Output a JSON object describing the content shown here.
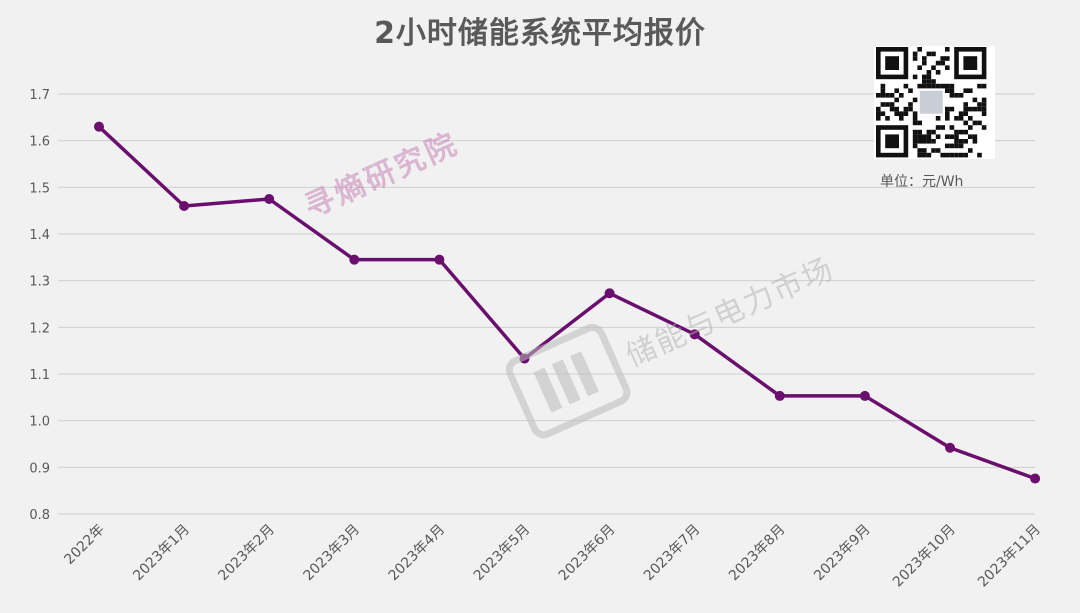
{
  "title": "2小时储能系统平均报价",
  "unit_label": "单位：元/Wh",
  "watermark_text": "寻熵研究院",
  "watermark_logo_text": "储能与电力市场",
  "chart_data": {
    "type": "line",
    "title": "2小时储能系统平均报价",
    "categories": [
      "2022年",
      "2023年1月",
      "2023年2月",
      "2023年3月",
      "2023年4月",
      "2023年5月",
      "2023年6月",
      "2023年7月",
      "2023年8月",
      "2023年9月",
      "2023年10月",
      "2023年11月"
    ],
    "series": [
      {
        "values": [
          1.63,
          1.46,
          1.475,
          1.345,
          1.345,
          1.133,
          1.273,
          1.185,
          1.053,
          1.053,
          0.942,
          0.876
        ]
      }
    ],
    "yticks": [
      0.8,
      0.9,
      1.0,
      1.1,
      1.2,
      1.3,
      1.4,
      1.5,
      1.6,
      1.7
    ],
    "ylim": [
      0.8,
      1.7
    ],
    "grid": true,
    "line_color": "#6a0f6e"
  }
}
